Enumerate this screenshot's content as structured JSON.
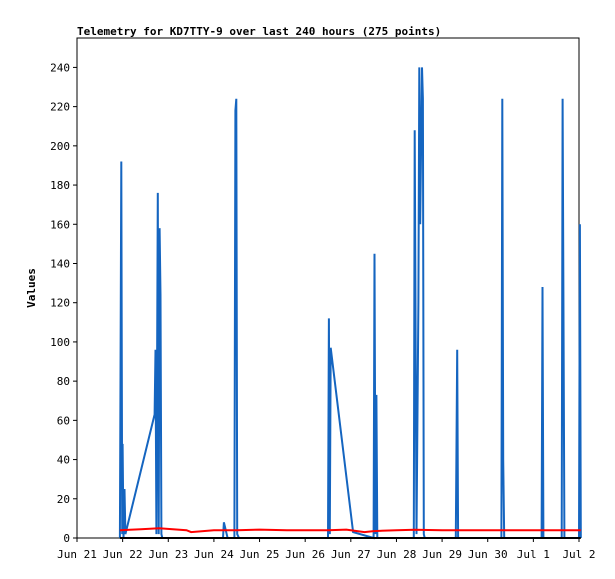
{
  "chart_data": {
    "type": "line",
    "title": "Telemetry for KD7TTY-9 over last 240 hours (275 points)",
    "xlabel": "",
    "ylabel": "Values",
    "xlim": [
      0,
      11
    ],
    "ylim": [
      0,
      255
    ],
    "y_ticks": [
      0,
      20,
      40,
      60,
      80,
      100,
      120,
      140,
      160,
      180,
      200,
      220,
      240
    ],
    "x_ticks": [
      "Jun 21",
      "Jun 22",
      "Jun 23",
      "Jun 24",
      "Jun 25",
      "Jun 26",
      "Jun 27",
      "Jun 28",
      "Jun 29",
      "Jun 30",
      "Jul 1",
      "Jul 2"
    ],
    "grid": false,
    "legend": "none",
    "series": [
      {
        "color": "#1565c0",
        "points": [
          [
            0.94,
            0
          ],
          [
            0.97,
            192
          ],
          [
            0.99,
            2
          ],
          [
            1.0,
            48
          ],
          [
            1.02,
            0
          ],
          [
            1.04,
            25
          ],
          [
            1.06,
            2
          ],
          [
            1.7,
            63
          ],
          [
            1.72,
            96
          ],
          [
            1.74,
            2
          ],
          [
            1.77,
            176
          ],
          [
            1.79,
            2
          ],
          [
            1.81,
            158
          ],
          [
            1.83,
            124
          ],
          [
            1.85,
            2
          ],
          [
            1.87,
            0
          ],
          [
            2.3,
            0
          ],
          [
            2.35,
            0
          ],
          [
            3.2,
            0
          ],
          [
            3.22,
            8
          ],
          [
            3.3,
            0
          ],
          [
            3.45,
            0
          ],
          [
            3.47,
            218
          ],
          [
            3.49,
            224
          ],
          [
            3.51,
            2
          ],
          [
            3.55,
            0
          ],
          [
            5.5,
            0
          ],
          [
            5.52,
            112
          ],
          [
            5.54,
            2
          ],
          [
            5.56,
            97
          ],
          [
            6.05,
            3
          ],
          [
            6.5,
            0
          ],
          [
            6.52,
            145
          ],
          [
            6.54,
            2
          ],
          [
            6.56,
            73
          ],
          [
            6.58,
            0
          ],
          [
            7.38,
            0
          ],
          [
            7.4,
            208
          ],
          [
            7.42,
            104
          ],
          [
            7.44,
            2
          ],
          [
            7.48,
            120
          ],
          [
            7.5,
            240
          ],
          [
            7.52,
            160
          ],
          [
            7.54,
            200
          ],
          [
            7.56,
            240
          ],
          [
            7.58,
            224
          ],
          [
            7.6,
            2
          ],
          [
            7.62,
            0
          ],
          [
            8.3,
            0
          ],
          [
            8.33,
            96
          ],
          [
            8.35,
            0
          ],
          [
            9.3,
            0
          ],
          [
            9.32,
            224
          ],
          [
            9.34,
            40
          ],
          [
            9.36,
            0
          ],
          [
            10.18,
            0
          ],
          [
            10.2,
            128
          ],
          [
            10.22,
            0
          ],
          [
            10.62,
            0
          ],
          [
            10.64,
            224
          ],
          [
            10.66,
            112
          ],
          [
            10.68,
            0
          ],
          [
            11.0,
            0
          ],
          [
            11.02,
            160
          ],
          [
            11.04,
            0
          ]
        ]
      },
      {
        "color": "#ff0000",
        "points": [
          [
            0.94,
            4
          ],
          [
            1.4,
            4.5
          ],
          [
            1.8,
            5
          ],
          [
            2.4,
            4
          ],
          [
            2.5,
            3
          ],
          [
            3.0,
            4
          ],
          [
            3.5,
            4
          ],
          [
            4.0,
            4.3
          ],
          [
            4.6,
            4
          ],
          [
            5.0,
            4
          ],
          [
            5.5,
            4
          ],
          [
            5.9,
            4.3
          ],
          [
            6.3,
            3
          ],
          [
            6.5,
            3.5
          ],
          [
            7.0,
            4
          ],
          [
            7.4,
            4.2
          ],
          [
            8.0,
            4
          ],
          [
            9.0,
            4
          ],
          [
            10.0,
            4
          ],
          [
            11.04,
            4
          ]
        ]
      },
      {
        "color": "#000000",
        "points": [
          [
            0.94,
            0
          ],
          [
            11.04,
            0
          ]
        ]
      }
    ]
  }
}
